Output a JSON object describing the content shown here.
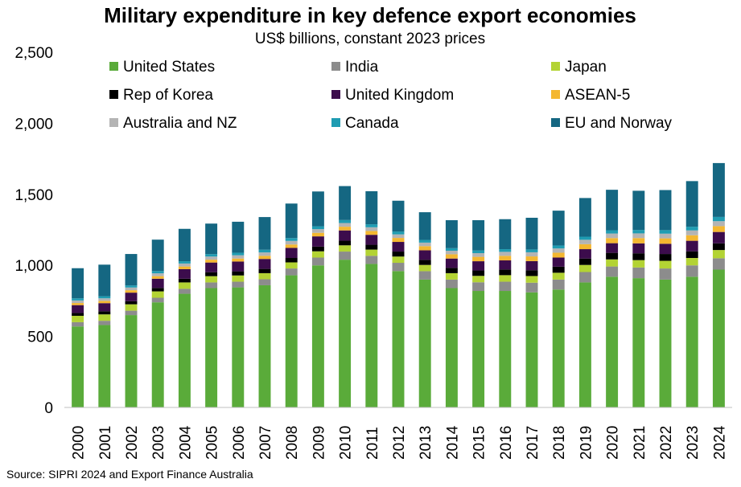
{
  "chart_data": {
    "type": "bar",
    "stacked": true,
    "title": "Military expenditure in key defence export economies",
    "subtitle": "US$ billions, constant 2023 prices",
    "source": "Source: SIPRI 2024 and Export Finance Australia",
    "ylim": [
      0,
      2500
    ],
    "yticks": [
      "0",
      "500",
      "1,000",
      "1,500",
      "2,000",
      "2,500"
    ],
    "ytick_values": [
      0,
      500,
      1000,
      1500,
      2000,
      2500
    ],
    "grid": false,
    "legend_position": "top",
    "categories": [
      "2000",
      "2001",
      "2002",
      "2003",
      "2004",
      "2005",
      "2006",
      "2007",
      "2008",
      "2009",
      "2010",
      "2011",
      "2012",
      "2013",
      "2014",
      "2015",
      "2016",
      "2017",
      "2018",
      "2019",
      "2020",
      "2021",
      "2022",
      "2023",
      "2024"
    ],
    "series": [
      {
        "name": "United States",
        "color": "#5aab3a",
        "values": [
          570,
          580,
          650,
          740,
          800,
          840,
          845,
          860,
          930,
          1000,
          1040,
          1010,
          960,
          900,
          840,
          820,
          820,
          810,
          830,
          880,
          920,
          910,
          900,
          920,
          970
        ]
      },
      {
        "name": "India",
        "color": "#8c8c8c",
        "values": [
          30,
          30,
          31,
          32,
          35,
          40,
          40,
          42,
          48,
          55,
          57,
          57,
          58,
          59,
          60,
          61,
          65,
          68,
          70,
          73,
          72,
          75,
          78,
          80,
          80
        ]
      },
      {
        "name": "Japan",
        "color": "#b3d334",
        "values": [
          45,
          45,
          45,
          45,
          45,
          44,
          44,
          43,
          43,
          44,
          44,
          44,
          44,
          44,
          45,
          45,
          46,
          47,
          48,
          50,
          50,
          52,
          54,
          52,
          58
        ]
      },
      {
        "name": "Rep of Korea",
        "color": "#000000",
        "values": [
          20,
          22,
          22,
          24,
          26,
          28,
          29,
          30,
          31,
          33,
          33,
          34,
          35,
          36,
          37,
          38,
          40,
          41,
          43,
          45,
          46,
          48,
          48,
          47,
          47
        ]
      },
      {
        "name": "United Kingdom",
        "color": "#3c0c4c",
        "values": [
          55,
          57,
          60,
          65,
          67,
          68,
          69,
          70,
          71,
          72,
          72,
          70,
          68,
          67,
          66,
          65,
          64,
          64,
          64,
          66,
          68,
          70,
          72,
          74,
          80
        ]
      },
      {
        "name": "ASEAN-5",
        "color": "#f4b730",
        "values": [
          15,
          16,
          17,
          18,
          19,
          20,
          21,
          22,
          24,
          25,
          26,
          27,
          28,
          29,
          30,
          31,
          32,
          33,
          34,
          35,
          36,
          37,
          38,
          39,
          41
        ]
      },
      {
        "name": "Australia and NZ",
        "color": "#b4b4b4",
        "values": [
          18,
          18,
          19,
          20,
          21,
          22,
          23,
          24,
          25,
          26,
          26,
          26,
          25,
          25,
          25,
          26,
          28,
          29,
          30,
          31,
          32,
          33,
          33,
          34,
          35
        ]
      },
      {
        "name": "Canada",
        "color": "#1f9cb2",
        "values": [
          15,
          15,
          15,
          16,
          16,
          17,
          18,
          19,
          20,
          20,
          21,
          21,
          20,
          19,
          18,
          19,
          19,
          20,
          21,
          22,
          23,
          24,
          25,
          26,
          30
        ]
      },
      {
        "name": "EU and Norway",
        "color": "#156782",
        "values": [
          212,
          222,
          221,
          221,
          228,
          215,
          218,
          230,
          243,
          245,
          239,
          233,
          217,
          195,
          197,
          213,
          211,
          223,
          245,
          272,
          285,
          276,
          282,
          321,
          379
        ]
      }
    ]
  }
}
